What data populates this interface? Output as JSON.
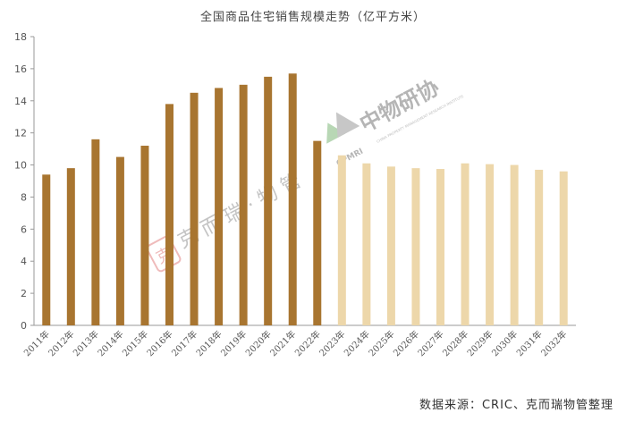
{
  "chart_data": {
    "type": "bar",
    "title": "全国商品住宅销售规模走势（亿平方米）",
    "xlabel": "",
    "ylabel": "",
    "ylim": [
      0,
      18
    ],
    "yticks": [
      0,
      2,
      4,
      6,
      8,
      10,
      12,
      14,
      16,
      18
    ],
    "grid": false,
    "categories": [
      "2011年",
      "2012年",
      "2013年",
      "2014年",
      "2015年",
      "2016年",
      "2017年",
      "2018年",
      "2019年",
      "2020年",
      "2021年",
      "2022年",
      "2023年",
      "2024年",
      "2025年",
      "2026年",
      "2027年",
      "2028年",
      "2029年",
      "2030年",
      "2031年",
      "2032年"
    ],
    "values": [
      9.4,
      9.8,
      11.6,
      10.5,
      11.2,
      13.8,
      14.5,
      14.8,
      15.0,
      15.5,
      15.7,
      11.5,
      10.6,
      10.1,
      9.9,
      9.8,
      9.75,
      10.1,
      10.05,
      10.0,
      9.7,
      9.6
    ],
    "actual_count": 12,
    "colors": {
      "actual": "#A87530",
      "forecast": "#EDD7AA",
      "axis": "#999999"
    }
  },
  "watermarks": {
    "cpmri_main": "中物研协",
    "cpmri_sub": "CHINA PROPERTY MANAGEMENT RESEARCH INSTITUTE",
    "cpmri_abbr": "CPMRI",
    "kerui_text": "克 而 瑞 · 物 管",
    "kerui_seal": "克"
  },
  "source": "数据来源：CRIC、克而瑞物管整理"
}
